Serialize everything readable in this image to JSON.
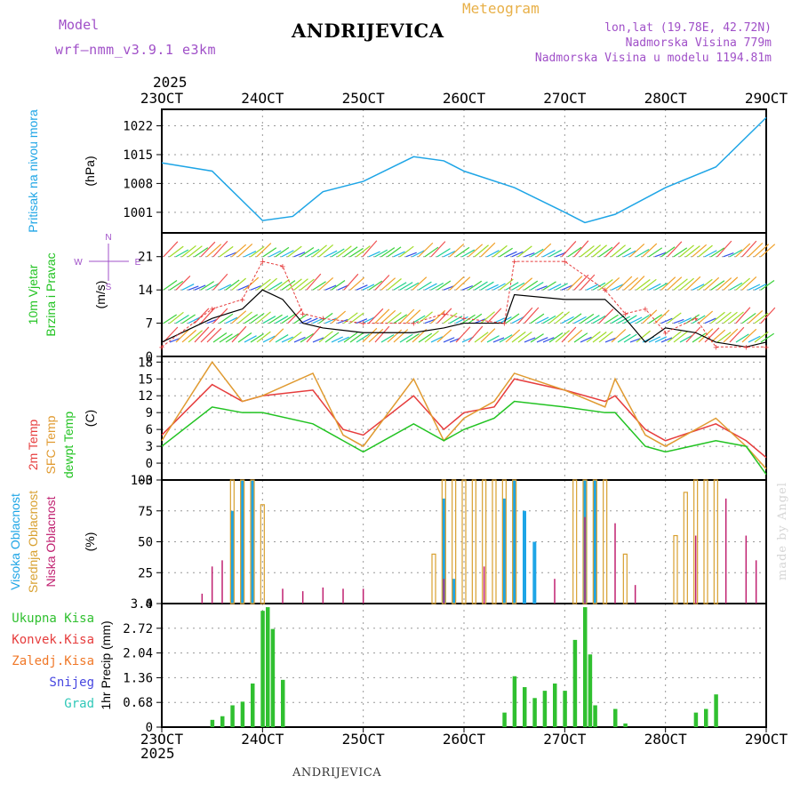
{
  "header": {
    "model_label": "Model",
    "model_name": "wrf—nmm_v3.9.1  e3km",
    "location": "ANDRIJEVICA",
    "meteogram": "Meteogram",
    "lonlat": "lon,lat (19.78E, 42.72N)",
    "elevation": "Nadmorska Visina 779m",
    "model_elevation": "Nadmorska Visina u modelu 1194.81m",
    "year_top": "2025",
    "year_bottom": "2025",
    "footer_location": "ANDRIJEVICA",
    "credit": "made by Angel"
  },
  "colors": {
    "pressure": "#1ea5e6",
    "wind_label": "#22c322",
    "temp2m": "#e63c3c",
    "sfc": "#e09a30",
    "dew": "#22c322",
    "high_cloud": "#1ea5e6",
    "mid_cloud": "#d8a030",
    "low_cloud": "#c02070",
    "precip": "#30c030",
    "konv": "#e63c3c",
    "zaled": "#f07828",
    "snijeg": "#4646e0",
    "grad": "#30c8b8",
    "compass": "#a050c8",
    "header_purple": "#a050c8",
    "meteogram_title": "#e8b048"
  },
  "chart_data": [
    {
      "type": "line",
      "panel": "pressure",
      "ylabel_left": "Pritisak na nivou mora",
      "unit": "(hPa)",
      "yticks": [
        "1022",
        "1015",
        "1008",
        "1001"
      ],
      "ylim": [
        996,
        1026
      ],
      "x_days": [
        23,
        23.5,
        24,
        24.3,
        24.6,
        25,
        25.5,
        25.8,
        26,
        26.5,
        27,
        27.2,
        27.5,
        28,
        28.5,
        29
      ],
      "values": [
        1013,
        1011,
        999,
        1000,
        1006,
        1008.5,
        1014.5,
        1013.5,
        1011,
        1007,
        1001,
        998.5,
        1000.5,
        1007,
        1012,
        1024
      ]
    },
    {
      "type": "line",
      "panel": "wind",
      "ylabel_left": [
        "10m Vjetar",
        "Brzina i Pravac"
      ],
      "unit": "(m/s)",
      "compass": [
        "N",
        "W",
        "E",
        "S"
      ],
      "yticks": [
        "21",
        "14",
        "7",
        "0"
      ],
      "ylim": [
        0,
        26
      ],
      "x_days": [
        23,
        23.5,
        23.8,
        24,
        24.2,
        24.4,
        24.6,
        25,
        25.5,
        25.8,
        26,
        26.4,
        26.5,
        27,
        27.4,
        27.6,
        27.8,
        28,
        28.3,
        28.5,
        28.8,
        29
      ],
      "speed": [
        3,
        8,
        10,
        14,
        12,
        7,
        6,
        5,
        5,
        6,
        7,
        7,
        13,
        12,
        12,
        8,
        3,
        6,
        5,
        3,
        2,
        3
      ],
      "gust": [
        2,
        10,
        12,
        20,
        19,
        9,
        8,
        7,
        7,
        9,
        8,
        7,
        20,
        20,
        14,
        9,
        10,
        5,
        8,
        2,
        2,
        2
      ],
      "barb_rows_m_s": [
        21,
        14,
        7,
        3
      ]
    },
    {
      "type": "line",
      "panel": "temperature",
      "ylabel_left": [
        "2m Temp",
        "SFC Temp",
        "dewpt Temp"
      ],
      "unit": "(C)",
      "yticks": [
        "18",
        "15",
        "12",
        "9",
        "6",
        "3",
        "0",
        "−3"
      ],
      "ylim": [
        -3,
        19
      ],
      "x_days": [
        23,
        23.5,
        23.8,
        24,
        24.5,
        24.8,
        25,
        25.5,
        25.8,
        26,
        26.3,
        26.5,
        27,
        27.4,
        27.5,
        27.8,
        28,
        28.5,
        28.8,
        29
      ],
      "series": [
        {
          "name": "2m Temp",
          "values": [
            5,
            14,
            11,
            12,
            13,
            6,
            5,
            12,
            6,
            9,
            10,
            15,
            13,
            11,
            12,
            6,
            4,
            7,
            4,
            1
          ]
        },
        {
          "name": "SFC Temp",
          "values": [
            4,
            18,
            11,
            12,
            16,
            5,
            3,
            15,
            4,
            8,
            11,
            16,
            13,
            10,
            15,
            5,
            3,
            8,
            3,
            -1
          ]
        },
        {
          "name": "dewpt Temp",
          "values": [
            3,
            10,
            9,
            9,
            7,
            4,
            2,
            7,
            4,
            6,
            8,
            11,
            10,
            9,
            9,
            3,
            2,
            4,
            3,
            -2
          ]
        }
      ]
    },
    {
      "type": "bar",
      "panel": "clouds",
      "ylabel_left": [
        "Visoka Oblacnost",
        "Srednja Oblacnost",
        "Niska Oblacnost"
      ],
      "unit": "(%)",
      "yticks": [
        "100",
        "75",
        "50",
        "25",
        "0"
      ],
      "ylim": [
        0,
        100
      ],
      "series": [
        {
          "name": "Visoka",
          "x_days": [
            23.7,
            23.8,
            23.9,
            24,
            25.8,
            25.9,
            26,
            26.4,
            26.5,
            26.6,
            26.7,
            27.2,
            27.3,
            27.4
          ],
          "values": [
            75,
            100,
            100,
            0,
            85,
            20,
            0,
            85,
            100,
            75,
            50,
            100,
            100,
            0
          ]
        },
        {
          "name": "Srednja",
          "x_days": [
            23.6,
            23.7,
            23.8,
            23.9,
            24,
            25.7,
            25.8,
            25.9,
            26,
            26.1,
            26.2,
            26.3,
            26.4,
            26.5,
            27.1,
            27.2,
            27.3,
            27.4,
            27.6,
            28.1,
            28.2,
            28.3,
            28.4,
            28.5
          ],
          "values": [
            0,
            100,
            100,
            100,
            80,
            40,
            100,
            100,
            100,
            100,
            100,
            100,
            100,
            100,
            100,
            100,
            100,
            100,
            40,
            55,
            90,
            100,
            100,
            100
          ]
        },
        {
          "name": "Niska",
          "x_days": [
            23.4,
            23.5,
            23.6,
            24.2,
            24.4,
            24.6,
            24.8,
            25,
            25.8,
            26.2,
            26.9,
            27.2,
            27.5,
            27.7,
            28.3,
            28.6,
            28.8,
            28.9
          ],
          "values": [
            8,
            30,
            35,
            12,
            10,
            13,
            12,
            12,
            20,
            30,
            20,
            70,
            65,
            15,
            55,
            85,
            55,
            35
          ]
        }
      ]
    },
    {
      "type": "bar",
      "panel": "precipitation",
      "legend": [
        "Ukupna Kisa",
        "Konvek.Kisa",
        "Zaledj.Kisa",
        "Snijeg",
        "Grad"
      ],
      "ylabel": "1hr Precip (mm)",
      "yticks": [
        "3.4",
        "2.72",
        "2.04",
        "1.36",
        "0.68",
        "0"
      ],
      "ylim": [
        0,
        3.4
      ],
      "x_days": [
        23.5,
        23.6,
        23.7,
        23.8,
        23.9,
        24,
        24.05,
        24.1,
        24.2,
        26.4,
        26.5,
        26.6,
        26.7,
        26.8,
        26.9,
        27,
        27.1,
        27.2,
        27.25,
        27.3,
        27.5,
        27.6,
        28.3,
        28.4,
        28.5
      ],
      "values": [
        0.2,
        0.3,
        0.6,
        0.7,
        1.2,
        3.2,
        3.3,
        2.7,
        1.3,
        0.4,
        1.4,
        1.1,
        0.8,
        1.0,
        1.2,
        1.0,
        2.4,
        3.3,
        2.0,
        0.6,
        0.5,
        0.1,
        0.4,
        0.5,
        0.9
      ]
    }
  ],
  "x_axis": {
    "start_day": 23,
    "end_day": 29,
    "tick_labels": [
      "23OCT",
      "24OCT",
      "25OCT",
      "26OCT",
      "27OCT",
      "28OCT",
      "29OCT"
    ]
  }
}
